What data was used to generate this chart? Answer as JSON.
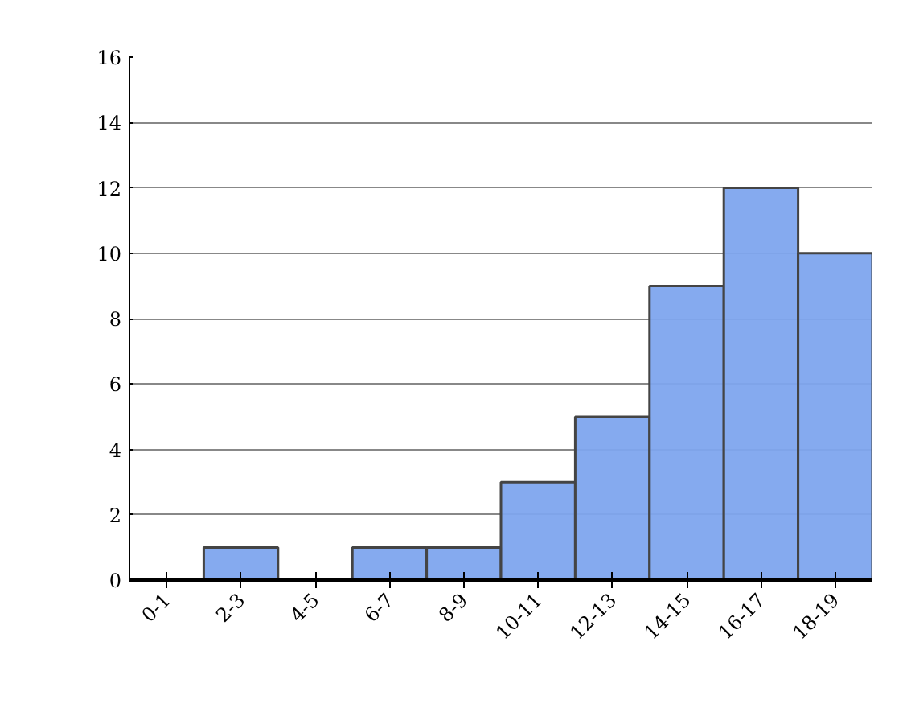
{
  "chart_data": {
    "type": "bar",
    "categories": [
      "0-1",
      "2-3",
      "4-5",
      "6-7",
      "8-9",
      "10-11",
      "12-13",
      "14-15",
      "16-17",
      "18-19"
    ],
    "values": [
      0,
      1,
      0,
      1,
      1,
      3,
      5,
      9,
      12,
      10
    ],
    "color": "#7ea5ee",
    "ylim": [
      0,
      16
    ],
    "yticks": [
      0,
      2,
      4,
      6,
      8,
      10,
      12,
      14,
      16
    ],
    "grid": "y"
  }
}
